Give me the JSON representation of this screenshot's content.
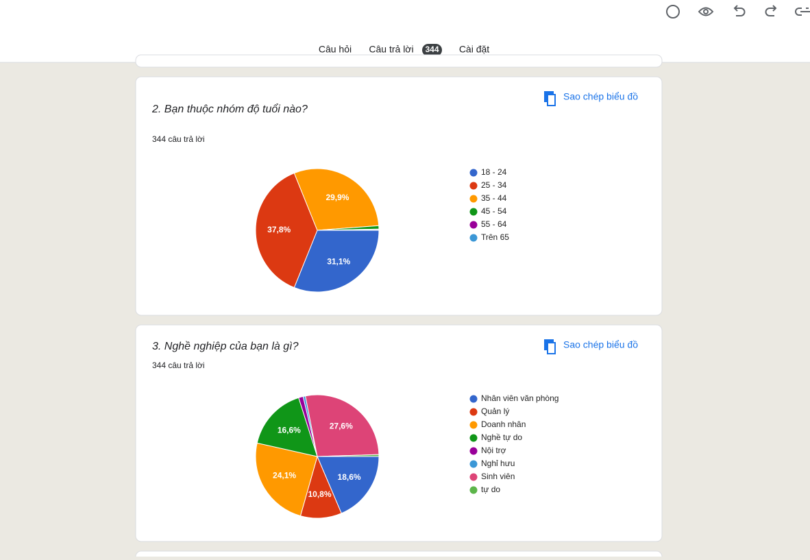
{
  "tabs": {
    "questions": "Câu hỏi",
    "responses": "Câu trả lời",
    "response_count": "344",
    "settings": "Cài đặt"
  },
  "copy_chart": "Sao chép biểu đồ",
  "chart_data": [
    {
      "type": "pie",
      "title": "2. Bạn thuộc nhóm độ tuổi nào?",
      "subtitle": "344 câu trả lời",
      "categories": [
        "18 - 24",
        "25 - 34",
        "35 - 44",
        "45 - 54",
        "55 - 64",
        "Trên 65"
      ],
      "values": [
        31.1,
        37.8,
        29.9,
        0.9,
        0.2,
        0.1
      ],
      "value_labels": [
        "31,1%",
        "37,8%",
        "29,9%",
        null,
        null,
        null
      ],
      "colors": [
        "#3366cc",
        "#dc3912",
        "#ff9900",
        "#109618",
        "#990099",
        "#3b97d6"
      ],
      "legend": "right"
    },
    {
      "type": "pie",
      "title": "3. Nghề nghiệp của bạn là gì?",
      "subtitle": "344 câu trả lời",
      "categories": [
        "Nhân viên văn phòng",
        "Quản lý",
        "Doanh nhân",
        "Nghề tự do",
        "Nội trợ",
        "Nghỉ hưu",
        "Sinh viên",
        "tự do"
      ],
      "values": [
        18.6,
        10.8,
        24.1,
        16.6,
        1.2,
        0.6,
        27.6,
        0.5
      ],
      "value_labels": [
        "18,6%",
        "10,8%",
        "24,1%",
        "16,6%",
        null,
        null,
        "27,6%",
        null
      ],
      "colors": [
        "#3366cc",
        "#dc3912",
        "#ff9900",
        "#109618",
        "#990099",
        "#3b97d6",
        "#dd4477",
        "#5cb54a"
      ],
      "legend": "right"
    }
  ]
}
